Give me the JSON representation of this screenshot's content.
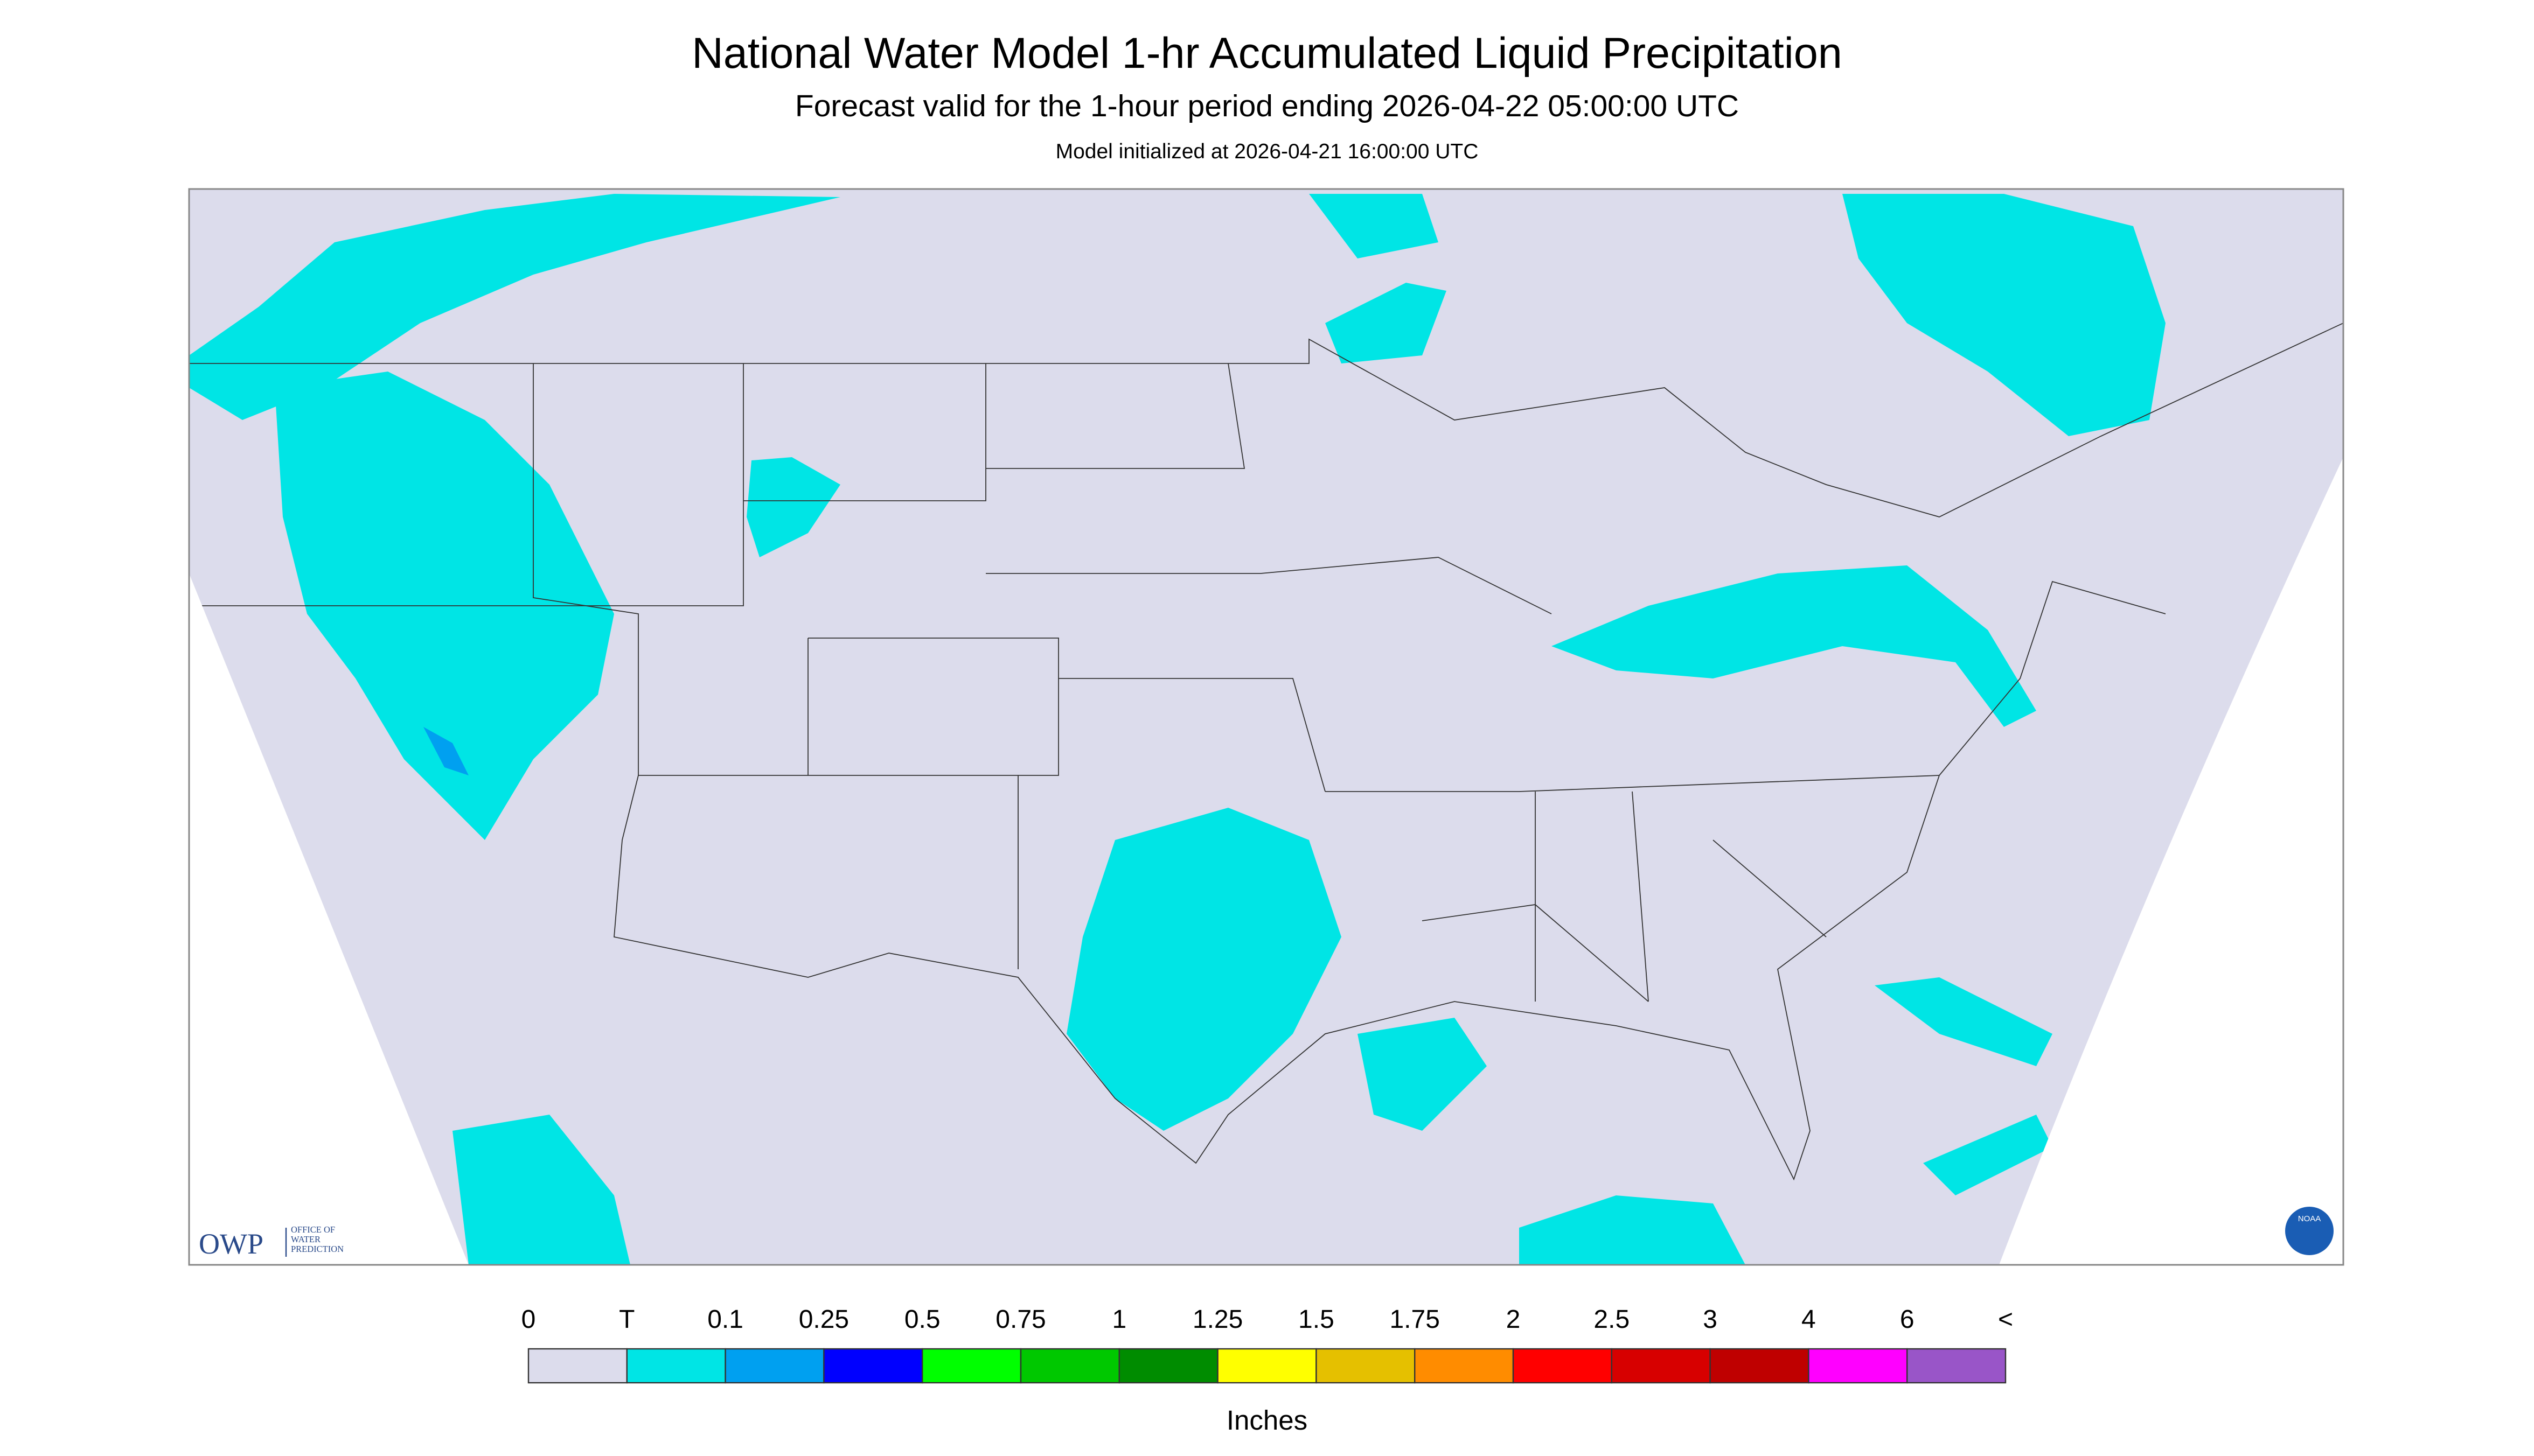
{
  "header": {
    "title": "National Water Model 1-hr Accumulated Liquid Precipitation",
    "subtitle": "Forecast valid for the 1-hour period ending 2026-04-22 05:00:00 UTC",
    "init": "Model initialized at 2026-04-21 16:00:00 UTC"
  },
  "legend": {
    "labels": [
      "0",
      "T",
      "0.1",
      "0.25",
      "0.5",
      "0.75",
      "1",
      "1.25",
      "1.5",
      "1.75",
      "2",
      "2.5",
      "3",
      "4",
      "6",
      "<"
    ],
    "colors": [
      "#dcdcec",
      "#00e5e5",
      "#00a0f0",
      "#0000ff",
      "#00ff00",
      "#00c800",
      "#008c00",
      "#ffff00",
      "#e5c000",
      "#ff8c00",
      "#ff0000",
      "#d70000",
      "#bf0000",
      "#ff00ff",
      "#9955c8"
    ],
    "units": "Inches"
  },
  "logos": {
    "owp": "OWP",
    "owp_text": [
      "OFFICE OF",
      "WATER",
      "PREDICTION"
    ],
    "noaa": "NOAA"
  }
}
